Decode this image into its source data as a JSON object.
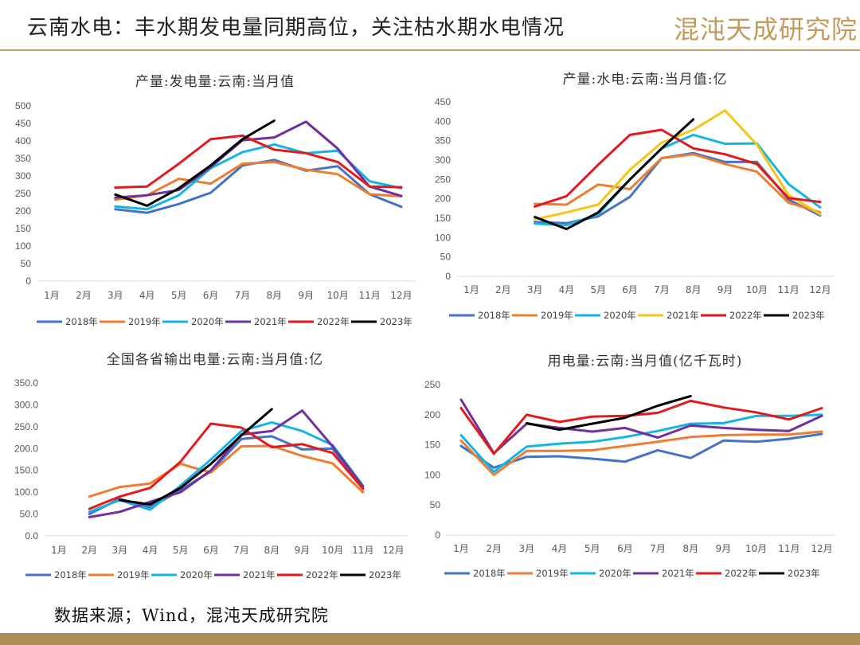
{
  "header": {
    "title": "云南水电：丰水期发电量同期高位，关注枯水期水电情况",
    "logo_text": "混沌天成研究院"
  },
  "source": "数据来源；Wind，混沌天成研究院",
  "colors": {
    "2018年": "#4472c4",
    "2019年": "#ed7d31",
    "2020年": "#16b4e3",
    "2021年": "#7030a0",
    "2021年-alt": "#f5c518",
    "2022年": "#e31a1c",
    "2023年": "#000000",
    "rule": "#c4a06a"
  },
  "chart_data": [
    {
      "type": "line",
      "title": "产量:发电量:云南:当月值",
      "categories": [
        "1月",
        "2月",
        "3月",
        "4月",
        "5月",
        "6月",
        "7月",
        "8月",
        "9月",
        "10月",
        "11月",
        "12月"
      ],
      "yticks": [
        "0",
        "50",
        "100",
        "150",
        "200",
        "250",
        "300",
        "350",
        "400",
        "450",
        "500"
      ],
      "ylim": [
        0,
        500
      ],
      "grid": false,
      "legend": "bottom",
      "series": [
        {
          "name": "2018年",
          "color": "#4472c4",
          "values": [
            null,
            null,
            205,
            195,
            220,
            252,
            330,
            346,
            315,
            328,
            248,
            212
          ]
        },
        {
          "name": "2019年",
          "color": "#ed7d31",
          "values": [
            null,
            null,
            232,
            245,
            292,
            278,
            335,
            340,
            318,
            305,
            248,
            242
          ]
        },
        {
          "name": "2020年",
          "color": "#16b4e3",
          "values": [
            null,
            null,
            213,
            205,
            245,
            322,
            368,
            390,
            365,
            372,
            285,
            265
          ]
        },
        {
          "name": "2021年",
          "color": "#7030a0",
          "values": [
            null,
            null,
            238,
            245,
            260,
            325,
            402,
            410,
            455,
            378,
            270,
            243
          ]
        },
        {
          "name": "2022年",
          "color": "#e31a1c",
          "values": [
            null,
            null,
            267,
            270,
            335,
            405,
            415,
            375,
            365,
            340,
            270,
            268
          ]
        },
        {
          "name": "2023年",
          "color": "#000000",
          "values": [
            null,
            null,
            247,
            215,
            265,
            330,
            405,
            458,
            null,
            null,
            null,
            null
          ]
        }
      ]
    },
    {
      "type": "line",
      "title": "产量:水电:云南:当月值:亿",
      "categories": [
        "1月",
        "2月",
        "3月",
        "4月",
        "5月",
        "6月",
        "7月",
        "8月",
        "9月",
        "10月",
        "11月",
        "12月"
      ],
      "yticks": [
        "0",
        "50",
        "100",
        "150",
        "200",
        "250",
        "300",
        "350",
        "400",
        "450"
      ],
      "ylim": [
        0,
        450
      ],
      "grid": false,
      "legend": "bottom",
      "series": [
        {
          "name": "2018年",
          "color": "#4472c4",
          "values": [
            null,
            null,
            140,
            137,
            155,
            205,
            305,
            318,
            295,
            295,
            198,
            157
          ]
        },
        {
          "name": "2019年",
          "color": "#ed7d31",
          "values": [
            null,
            null,
            187,
            185,
            237,
            225,
            305,
            315,
            290,
            270,
            190,
            165
          ]
        },
        {
          "name": "2020年",
          "color": "#16b4e3",
          "values": [
            null,
            null,
            136,
            132,
            160,
            250,
            330,
            365,
            342,
            343,
            238,
            178
          ]
        },
        {
          "name": "2021年",
          "color": "#f5c518",
          "values": [
            null,
            null,
            147,
            165,
            185,
            275,
            345,
            378,
            428,
            340,
            210,
            160
          ]
        },
        {
          "name": "2022年",
          "color": "#e31a1c",
          "values": [
            null,
            null,
            180,
            207,
            288,
            365,
            378,
            330,
            315,
            290,
            202,
            192
          ]
        },
        {
          "name": "2023年",
          "color": "#000000",
          "values": [
            null,
            null,
            153,
            122,
            165,
            250,
            330,
            405,
            null,
            null,
            null,
            null
          ]
        }
      ]
    },
    {
      "type": "line",
      "title": "全国各省输出电量:云南:当月值:亿",
      "categories": [
        "1月",
        "2月",
        "3月",
        "4月",
        "5月",
        "6月",
        "7月",
        "8月",
        "9月",
        "10月",
        "11月",
        "12月"
      ],
      "yticks": [
        "0.0",
        "50.0",
        "100.0",
        "150.0",
        "200.0",
        "250.0",
        "300.0",
        "350.0"
      ],
      "ylim": [
        0,
        350
      ],
      "grid": false,
      "legend": "bottom",
      "series": [
        {
          "name": "2018年",
          "color": "#4472c4",
          "values": [
            null,
            50,
            85,
            65,
            105,
            148,
            222,
            228,
            198,
            200,
            110,
            null
          ]
        },
        {
          "name": "2019年",
          "color": "#ed7d31",
          "values": [
            null,
            90,
            112,
            120,
            165,
            145,
            205,
            206,
            183,
            166,
            100,
            null
          ]
        },
        {
          "name": "2020年",
          "color": "#16b4e3",
          "values": [
            null,
            55,
            82,
            60,
            115,
            175,
            240,
            260,
            240,
            208,
            115,
            null
          ]
        },
        {
          "name": "2021年",
          "color": "#7030a0",
          "values": [
            null,
            43,
            55,
            78,
            100,
            150,
            232,
            240,
            287,
            205,
            113,
            null
          ]
        },
        {
          "name": "2022年",
          "color": "#e31a1c",
          "values": [
            null,
            62,
            90,
            110,
            170,
            257,
            248,
            203,
            210,
            190,
            108,
            null
          ]
        },
        {
          "name": "2023年",
          "color": "#000000",
          "values": [
            null,
            null,
            82,
            72,
            110,
            165,
            230,
            290,
            null,
            null,
            null,
            null
          ]
        }
      ]
    },
    {
      "type": "line",
      "title": "用电量:云南:当月值(亿千瓦时)",
      "categories": [
        "1月",
        "2月",
        "3月",
        "4月",
        "5月",
        "6月",
        "7月",
        "8月",
        "9月",
        "10月",
        "11月",
        "12月"
      ],
      "yticks": [
        "0",
        "50",
        "100",
        "150",
        "200",
        "250"
      ],
      "ylim": [
        0,
        250
      ],
      "grid": false,
      "legend": "bottom",
      "series": [
        {
          "name": "2018年",
          "color": "#4472c4",
          "values": [
            148,
            112,
            130,
            131,
            127,
            122,
            141,
            128,
            157,
            155,
            160,
            168
          ]
        },
        {
          "name": "2019年",
          "color": "#ed7d31",
          "values": [
            157,
            100,
            140,
            140,
            141,
            148,
            155,
            163,
            166,
            167,
            167,
            172
          ]
        },
        {
          "name": "2020年",
          "color": "#16b4e3",
          "values": [
            166,
            105,
            147,
            152,
            155,
            163,
            173,
            185,
            186,
            198,
            198,
            200
          ]
        },
        {
          "name": "2021年",
          "color": "#7030a0",
          "values": [
            225,
            136,
            185,
            178,
            172,
            178,
            162,
            182,
            178,
            175,
            173,
            198
          ]
        },
        {
          "name": "2022年",
          "color": "#e31a1c",
          "values": [
            211,
            135,
            200,
            188,
            197,
            198,
            203,
            223,
            212,
            204,
            192,
            211
          ]
        },
        {
          "name": "2023年",
          "color": "#000000",
          "values": [
            null,
            null,
            186,
            175,
            185,
            195,
            215,
            231,
            null,
            null,
            null,
            null
          ]
        }
      ]
    }
  ]
}
